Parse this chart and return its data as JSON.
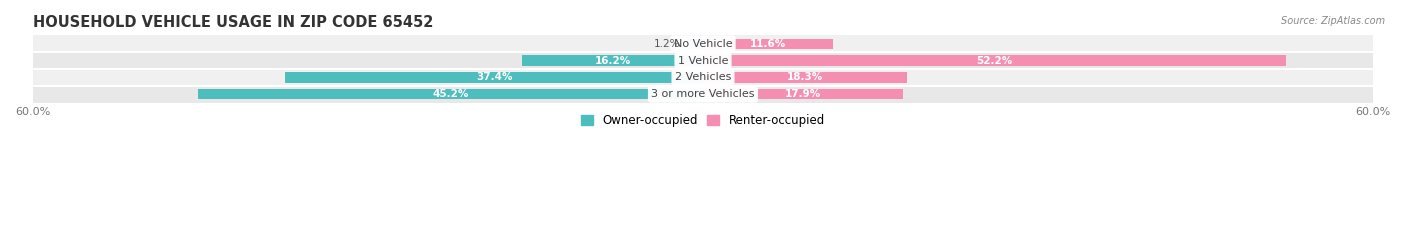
{
  "title": "HOUSEHOLD VEHICLE USAGE IN ZIP CODE 65452",
  "source": "Source: ZipAtlas.com",
  "categories": [
    "No Vehicle",
    "1 Vehicle",
    "2 Vehicles",
    "3 or more Vehicles"
  ],
  "owner_values": [
    1.2,
    16.2,
    37.4,
    45.2
  ],
  "renter_values": [
    11.6,
    52.2,
    18.3,
    17.9
  ],
  "owner_color": "#4dbdbd",
  "renter_color": "#f48fb1",
  "row_bg_colors": [
    "#f0f0f0",
    "#e8e8e8",
    "#f0f0f0",
    "#e8e8e8"
  ],
  "max_value": 60.0,
  "title_fontsize": 10.5,
  "label_fontsize": 8.0,
  "value_fontsize": 7.5,
  "tick_fontsize": 8.0,
  "legend_fontsize": 8.5,
  "bar_height": 0.62,
  "background_color": "#ffffff",
  "inner_label_color": "#ffffff",
  "outer_label_color": "#555555",
  "inner_label_threshold": 8.0
}
